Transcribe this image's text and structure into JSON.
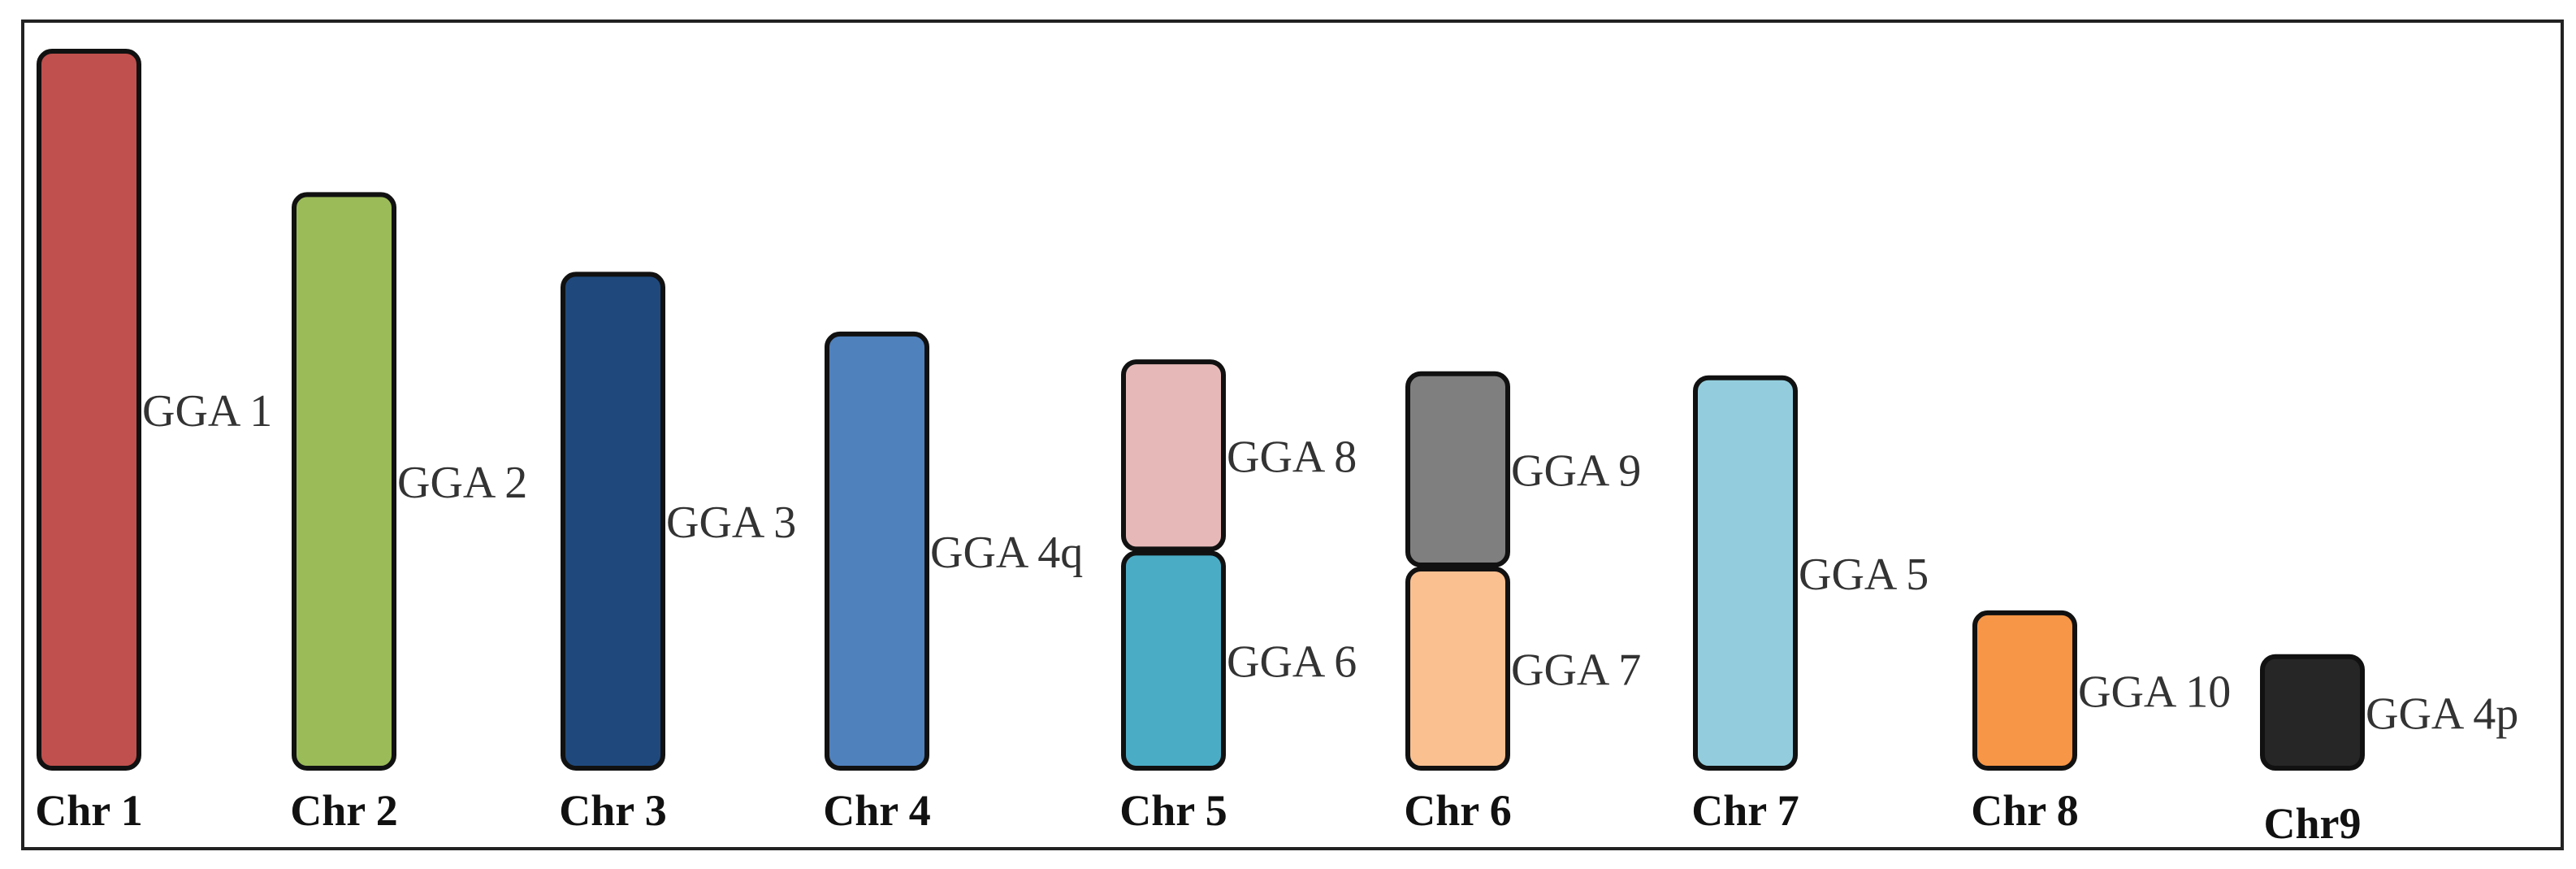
{
  "diagram": {
    "type": "karyotype-comparison",
    "chromosomes": [
      {
        "label": "Chr 1",
        "segments": [
          {
            "label": "GGA 1",
            "color": "#c0504d",
            "relative_size": 9.0
          }
        ]
      },
      {
        "label": "Chr 2",
        "segments": [
          {
            "label": "GGA 2",
            "color": "#9bbb59",
            "relative_size": 7.2
          }
        ]
      },
      {
        "label": "Chr 3",
        "segments": [
          {
            "label": "GGA 3",
            "color": "#1f497d",
            "relative_size": 6.2
          }
        ]
      },
      {
        "label": "Chr 4",
        "segments": [
          {
            "label": "GGA 4q",
            "color": "#4f81bd",
            "relative_size": 5.45
          }
        ]
      },
      {
        "label": "Chr 5",
        "segments": [
          {
            "label": "GGA 8",
            "color": "#e6b9b8",
            "relative_size": 2.35
          },
          {
            "label": "GGA 6",
            "color": "#4bacc6",
            "relative_size": 2.7
          }
        ]
      },
      {
        "label": "Chr 6",
        "segments": [
          {
            "label": "GGA 9",
            "color": "#7f7f7f",
            "relative_size": 2.4
          },
          {
            "label": "GGA 7",
            "color": "#fac090",
            "relative_size": 2.5
          }
        ]
      },
      {
        "label": "Chr 7",
        "segments": [
          {
            "label": "GGA 5",
            "color": "#93cddd",
            "relative_size": 4.9
          }
        ]
      },
      {
        "label": "Chr 8",
        "segments": [
          {
            "label": "GGA 10",
            "color": "#f79646",
            "relative_size": 1.95
          }
        ]
      },
      {
        "label": "Chr9",
        "segments": [
          {
            "label": "GGA 4p",
            "color": "#262626",
            "relative_size": 1.4
          }
        ]
      }
    ]
  }
}
